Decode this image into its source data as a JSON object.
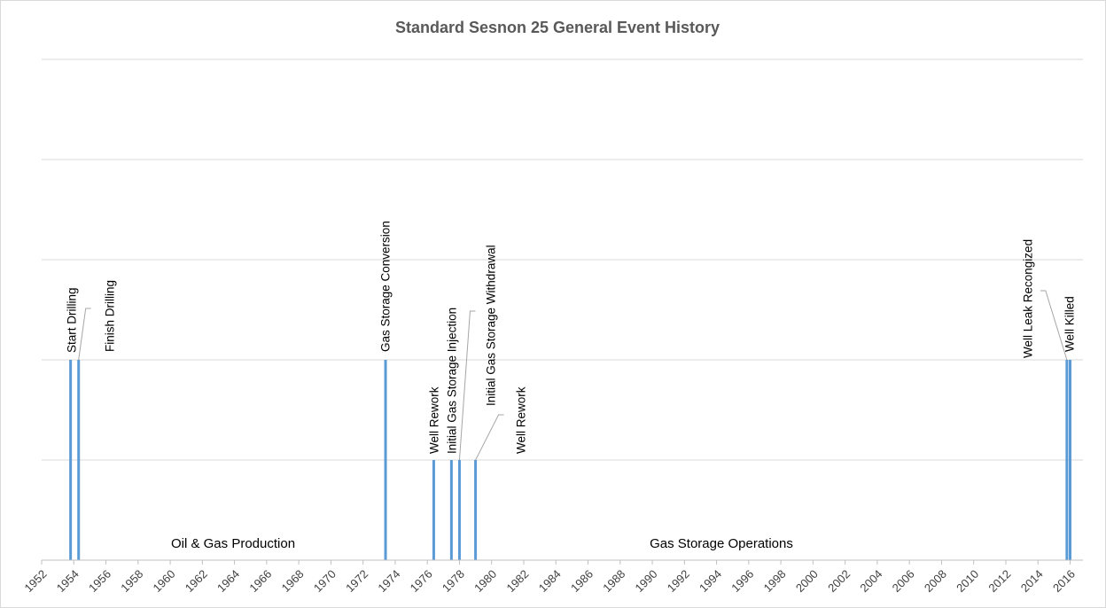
{
  "chart_data": {
    "type": "timeline",
    "title": "Standard Sesnon 25 General Event History",
    "events": [
      "Start Drilling",
      "Finish Drilling",
      "Gas Storage Conversion",
      "Well Rework",
      "Initial Gas Storage Injection",
      "Initial Gas Storage Withdrawal",
      "Well Rework",
      "Well Leak Recongized",
      "Well Killed"
    ],
    "x": [
      1953.8,
      1954.3,
      1973.4,
      1976.4,
      1977.5,
      1978.0,
      1979.0,
      2015.8,
      2016.0
    ],
    "values": [
      2,
      2,
      2,
      1,
      1,
      1,
      1,
      2,
      2
    ],
    "color": "#5b9bd5",
    "xlim": [
      1952,
      2016.8
    ],
    "xticks": [
      1952,
      1954,
      1956,
      1958,
      1960,
      1962,
      1964,
      1966,
      1968,
      1970,
      1972,
      1974,
      1976,
      1978,
      1980,
      1982,
      1984,
      1986,
      1988,
      1990,
      1992,
      1994,
      1996,
      1998,
      2000,
      2002,
      2004,
      2006,
      2008,
      2010,
      2012,
      2014,
      2016
    ],
    "ylim": [
      0,
      5
    ],
    "yticks": [
      0,
      1,
      2,
      3,
      4,
      5
    ],
    "grid": true,
    "annotations": [
      "Oil & Gas Production",
      "Gas Storage Operations"
    ]
  }
}
